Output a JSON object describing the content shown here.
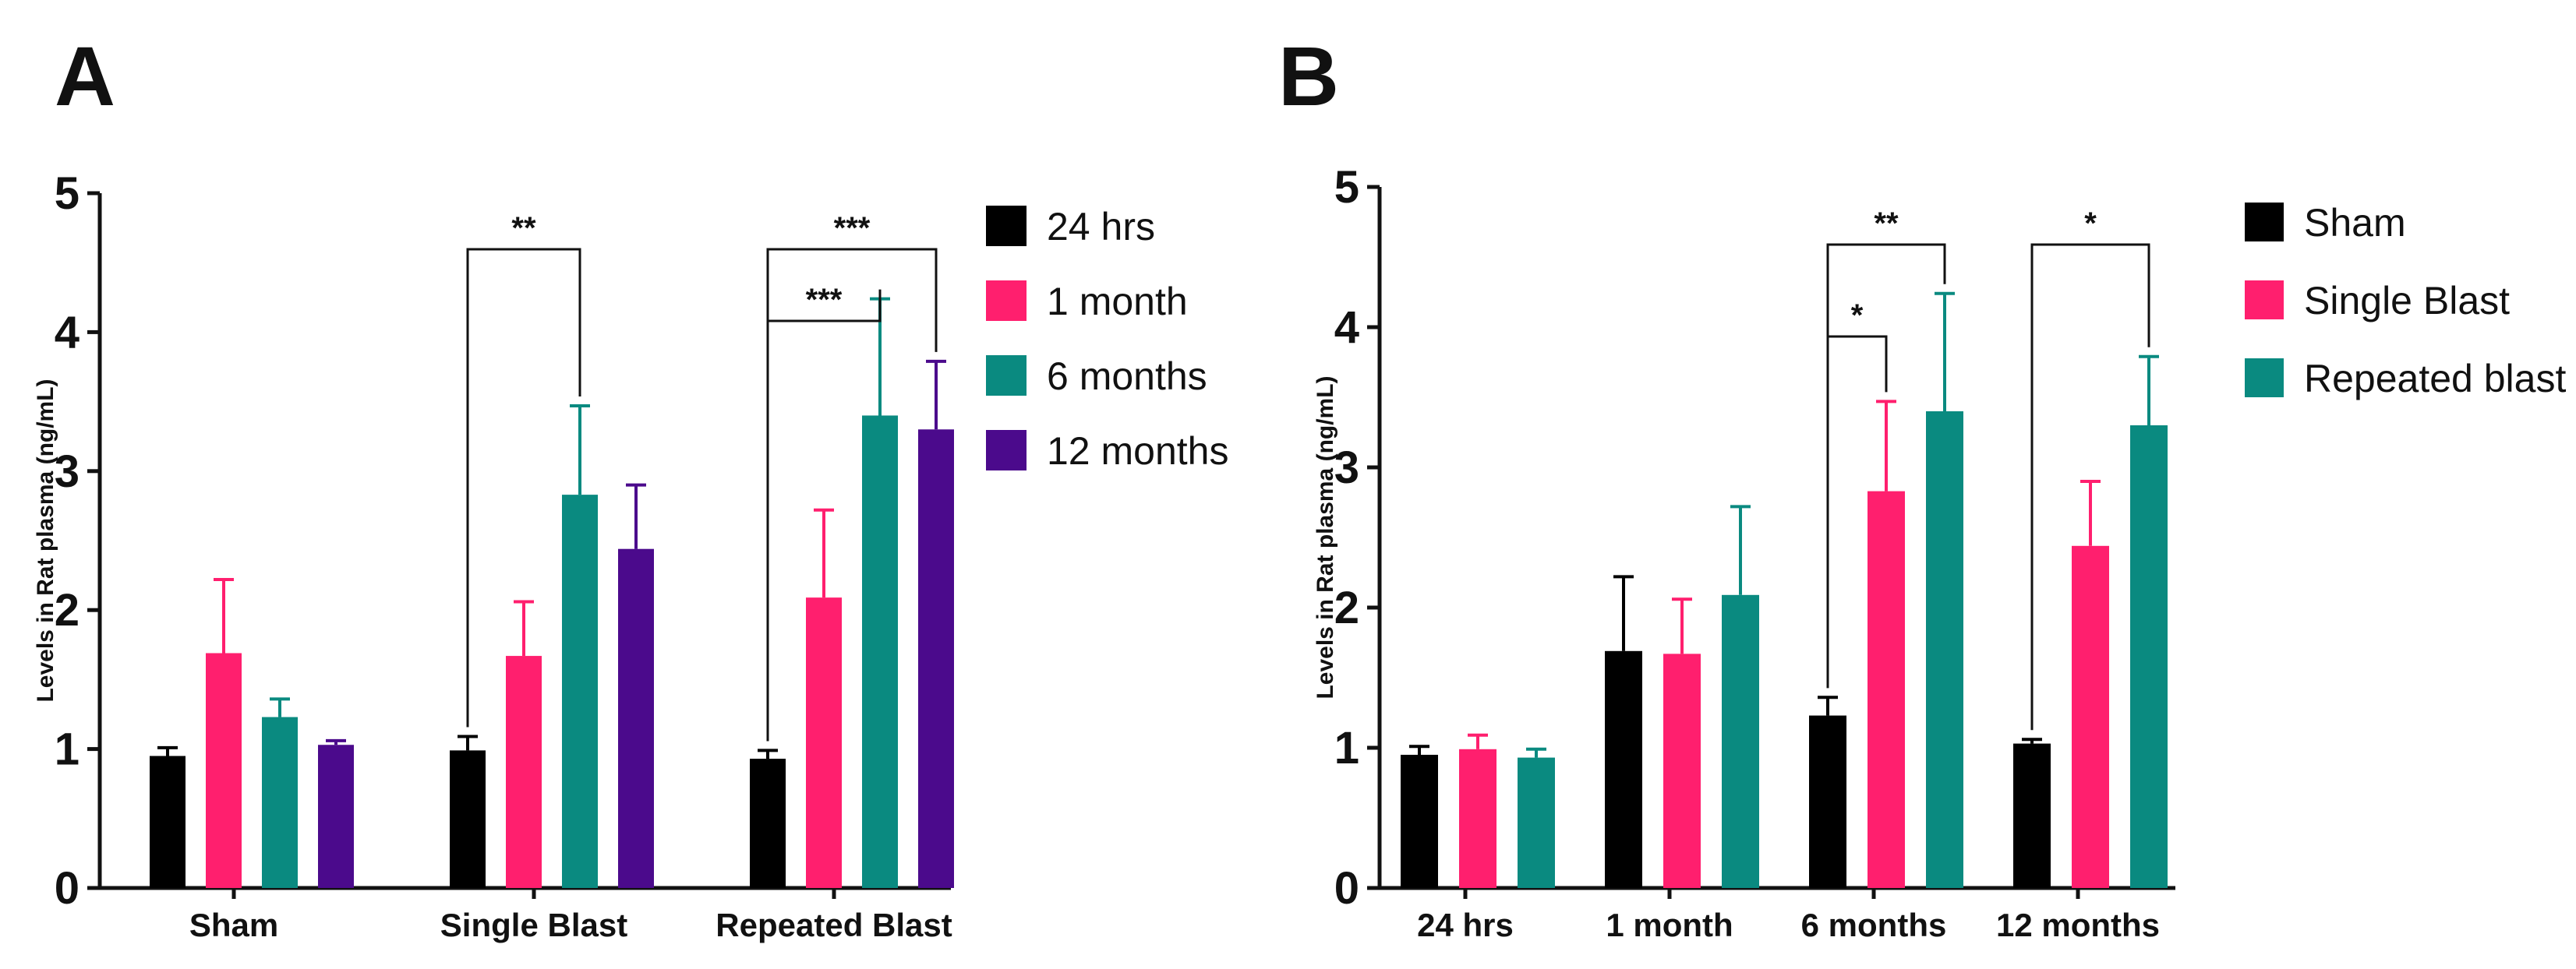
{
  "chart_data": [
    {
      "panel_label": "A",
      "type": "bar",
      "ylabel": "Levels in Rat plasma (ng/mL)",
      "ylim": [
        0,
        5
      ],
      "yticks": [
        "0",
        "1",
        "2",
        "3",
        "4",
        "5"
      ],
      "legend_position": "right",
      "categories": [
        "Sham",
        "Single Blast",
        "Repeated Blast"
      ],
      "series": [
        {
          "name": "24 hrs",
          "color": "#000000",
          "values": [
            0.95,
            0.99,
            0.93
          ],
          "errors": [
            0.06,
            0.1,
            0.06
          ]
        },
        {
          "name": "1 month",
          "color": "#ff1f6e",
          "values": [
            1.69,
            1.67,
            2.09
          ],
          "errors": [
            0.53,
            0.39,
            0.63
          ]
        },
        {
          "name": "6 months",
          "color": "#0a8a80",
          "values": [
            1.23,
            2.83,
            3.4
          ],
          "errors": [
            0.13,
            0.64,
            0.84
          ]
        },
        {
          "name": "12 months",
          "color": "#4b0a8c",
          "values": [
            1.03,
            2.44,
            3.3
          ],
          "errors": [
            0.03,
            0.46,
            0.49
          ]
        }
      ],
      "significance": [
        {
          "category": 1,
          "from_series": 0,
          "to_series": 2,
          "label": "**"
        },
        {
          "category": 2,
          "from_series": 0,
          "to_series": 2,
          "label": "***"
        },
        {
          "category": 2,
          "from_series": 0,
          "to_series": 3,
          "label": "***"
        }
      ]
    },
    {
      "panel_label": "B",
      "type": "bar",
      "ylabel": "Levels in Rat plasma (ng/mL)",
      "ylim": [
        0,
        5
      ],
      "yticks": [
        "0",
        "1",
        "2",
        "3",
        "4",
        "5"
      ],
      "legend_position": "right",
      "categories": [
        "24 hrs",
        "1 month",
        "6 months",
        "12 months"
      ],
      "series": [
        {
          "name": "Sham",
          "color": "#000000",
          "values": [
            0.95,
            1.69,
            1.23,
            1.03
          ],
          "errors": [
            0.06,
            0.53,
            0.13,
            0.03
          ]
        },
        {
          "name": "Single Blast",
          "color": "#ff1f6e",
          "values": [
            0.99,
            1.67,
            2.83,
            2.44
          ],
          "errors": [
            0.1,
            0.39,
            0.64,
            0.46
          ]
        },
        {
          "name": "Repeated blast",
          "color": "#0a8a80",
          "values": [
            0.93,
            2.09,
            3.4,
            3.3
          ],
          "errors": [
            0.06,
            0.63,
            0.84,
            0.49
          ]
        }
      ],
      "significance": [
        {
          "category": 2,
          "from_series": 0,
          "to_series": 1,
          "label": "*"
        },
        {
          "category": 2,
          "from_series": 0,
          "to_series": 2,
          "label": "**"
        },
        {
          "category": 3,
          "from_series": 0,
          "to_series": 2,
          "label": "*"
        }
      ]
    }
  ]
}
